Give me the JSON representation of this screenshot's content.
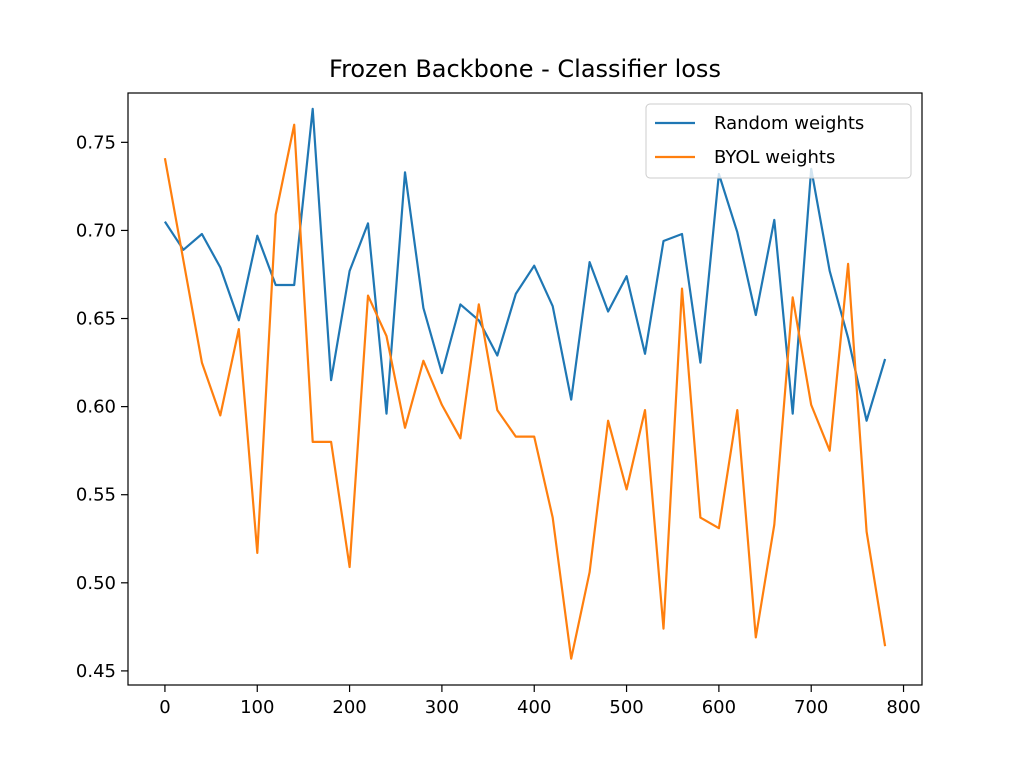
{
  "chart_data": {
    "type": "line",
    "title": "Frozen Backbone - Classifier loss",
    "xlabel": "",
    "ylabel": "",
    "xlim": [
      -40,
      820
    ],
    "ylim": [
      0.442,
      0.778
    ],
    "x_ticks": [
      0,
      100,
      200,
      300,
      400,
      500,
      600,
      700,
      800
    ],
    "y_ticks": [
      0.45,
      0.5,
      0.55,
      0.6,
      0.65,
      0.7,
      0.75
    ],
    "x_tick_labels": [
      "0",
      "100",
      "200",
      "300",
      "400",
      "500",
      "600",
      "700",
      "800"
    ],
    "y_tick_labels": [
      "0.45",
      "0.50",
      "0.55",
      "0.60",
      "0.65",
      "0.70",
      "0.75"
    ],
    "grid": false,
    "legend_position": "top-right",
    "x": [
      0,
      20,
      40,
      60,
      80,
      100,
      120,
      140,
      160,
      180,
      200,
      220,
      240,
      260,
      280,
      300,
      320,
      340,
      360,
      380,
      400,
      420,
      440,
      460,
      480,
      500,
      520,
      540,
      560,
      580,
      600,
      620,
      640,
      660,
      680,
      700,
      720,
      740,
      760,
      780
    ],
    "series": [
      {
        "name": "Random weights",
        "color": "#1f77b4",
        "values": [
          0.705,
          0.689,
          0.698,
          0.679,
          0.649,
          0.697,
          0.669,
          0.669,
          0.769,
          0.615,
          0.677,
          0.704,
          0.596,
          0.733,
          0.656,
          0.619,
          0.658,
          0.649,
          0.629,
          0.664,
          0.68,
          0.657,
          0.604,
          0.682,
          0.654,
          0.674,
          0.63,
          0.694,
          0.698,
          0.625,
          0.732,
          0.699,
          0.652,
          0.706,
          0.596,
          0.735,
          0.677,
          0.639,
          0.592,
          0.627
        ]
      },
      {
        "name": "BYOL weights",
        "color": "#ff7f0e",
        "values": [
          0.741,
          0.683,
          0.625,
          0.595,
          0.644,
          0.517,
          0.709,
          0.76,
          0.58,
          0.58,
          0.509,
          0.663,
          0.64,
          0.588,
          0.626,
          0.601,
          0.582,
          0.658,
          0.598,
          0.583,
          0.583,
          0.537,
          0.457,
          0.506,
          0.592,
          0.553,
          0.598,
          0.474,
          0.667,
          0.537,
          0.531,
          0.598,
          0.469,
          0.533,
          0.662,
          0.601,
          0.575,
          0.681,
          0.529,
          0.464
        ]
      }
    ]
  }
}
